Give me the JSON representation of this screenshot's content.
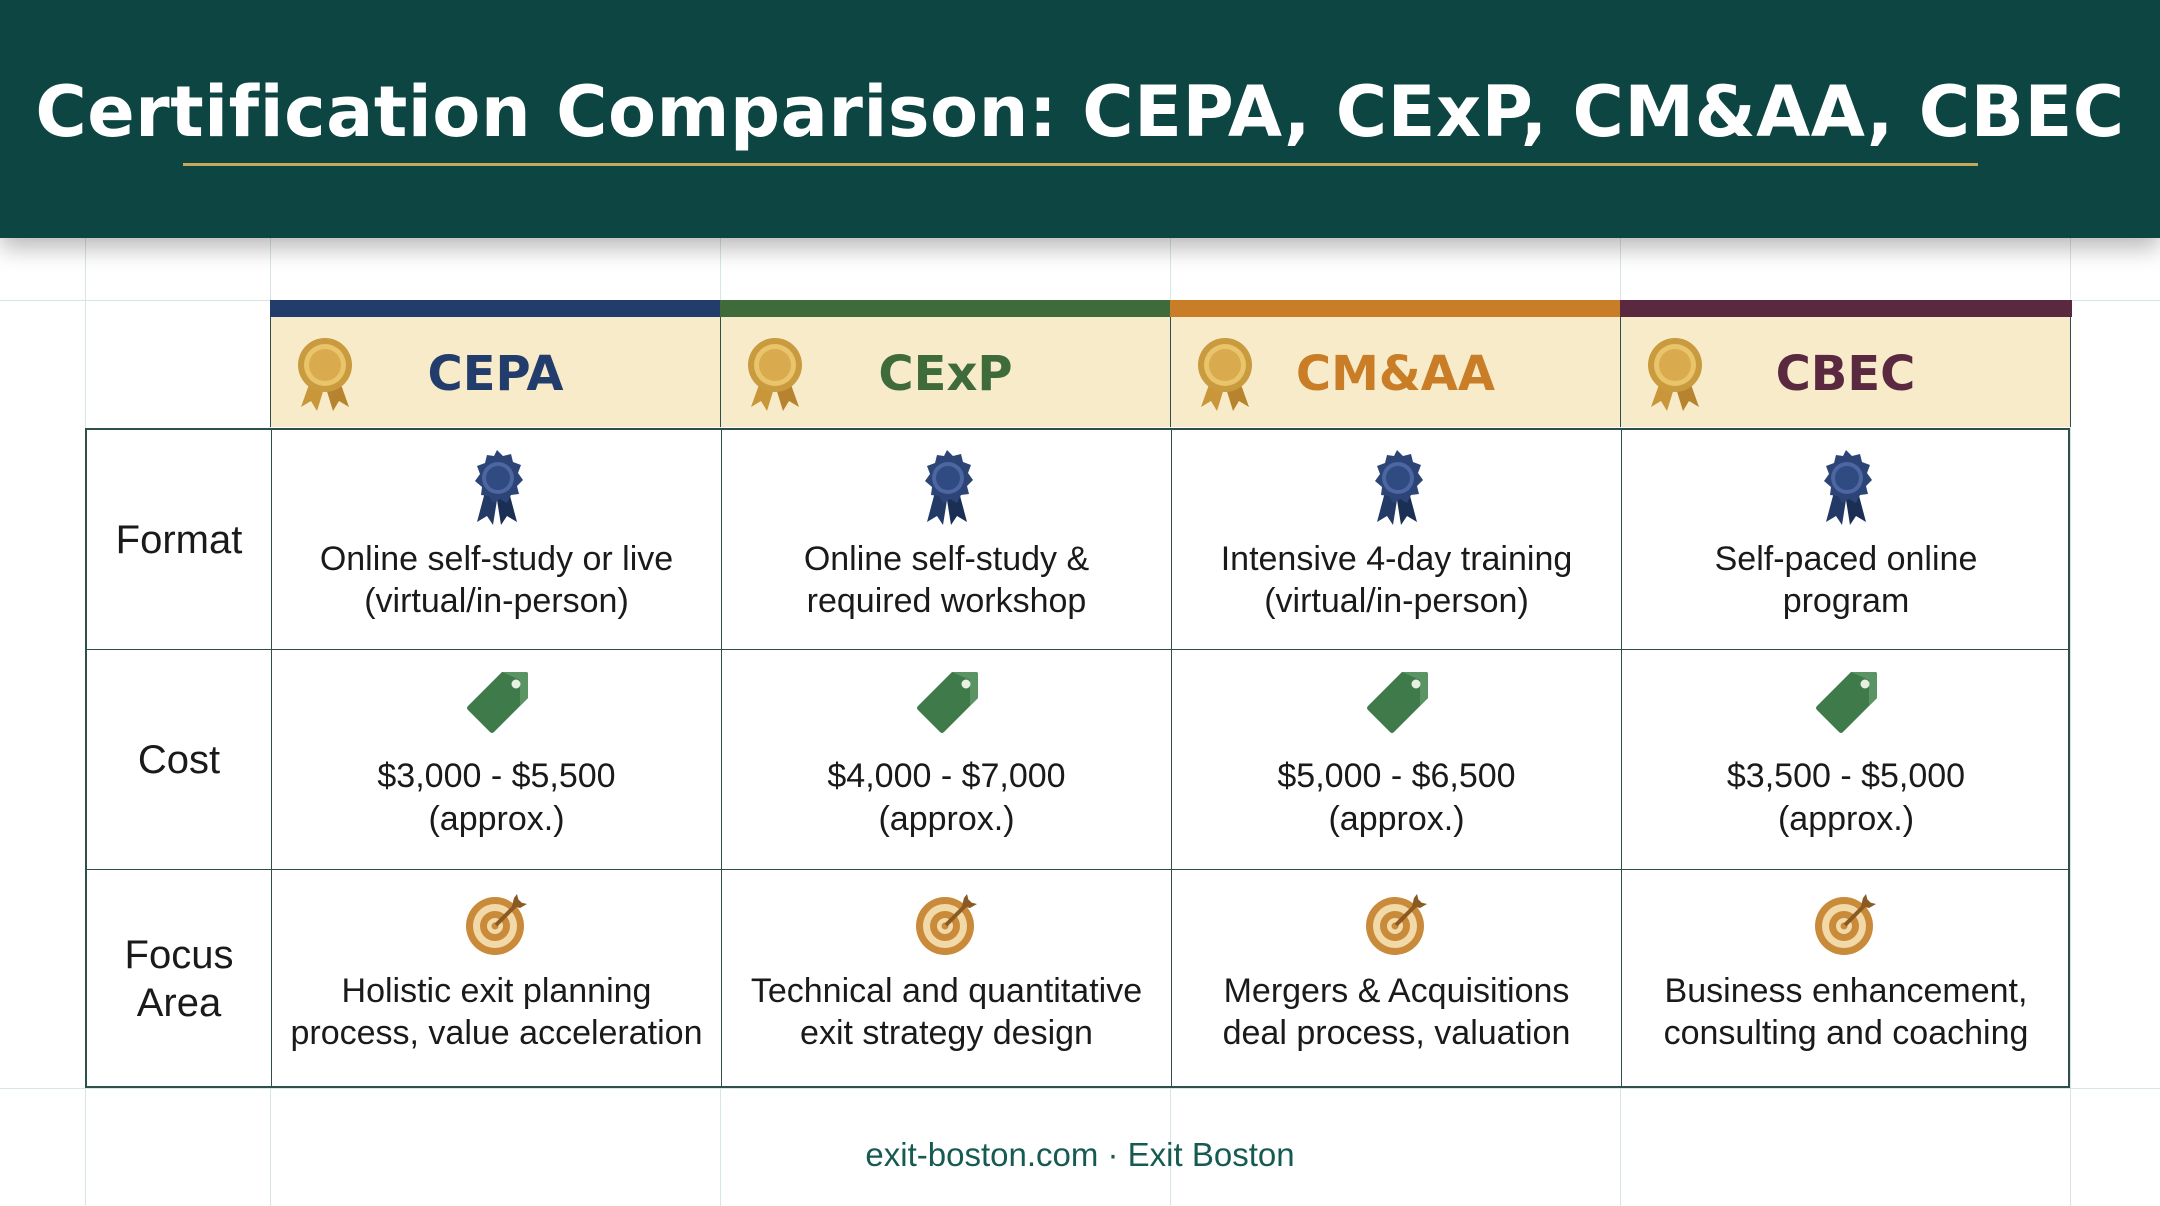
{
  "title": "Certification Comparison: CEPA, CExP, CM&AA, CBEC",
  "columns": [
    {
      "name": "CEPA",
      "accent": "#223d6b",
      "bar": "#223d6b"
    },
    {
      "name": "CExP",
      "accent": "#3f6b3a",
      "bar": "#3f6b3a"
    },
    {
      "name": "CM&AA",
      "accent": "#c97d26",
      "bar": "#c97d26"
    },
    {
      "name": "CBEC",
      "accent": "#5a2940",
      "bar": "#5a2940"
    }
  ],
  "rows": [
    {
      "label_line1": "Format",
      "label_line2": "",
      "icon": "ribbon-award-icon",
      "cells": [
        {
          "line1": "Online self-study or live",
          "line2": "(virtual/in-person)"
        },
        {
          "line1": "Online self-study &",
          "line2": "required workshop"
        },
        {
          "line1": "Intensive 4-day training",
          "line2": "(virtual/in-person)"
        },
        {
          "line1": "Self-paced online",
          "line2": "program"
        }
      ]
    },
    {
      "label_line1": "Cost",
      "label_line2": "",
      "icon": "price-tag-icon",
      "cells": [
        {
          "line1": "$3,000 - $5,500",
          "line2": "(approx.)"
        },
        {
          "line1": "$4,000 - $7,000",
          "line2": "(approx.)"
        },
        {
          "line1": "$5,000 - $6,500",
          "line2": "(approx.)"
        },
        {
          "line1": "$3,500 - $5,000",
          "line2": "(approx.)"
        }
      ]
    },
    {
      "label_line1": "Focus",
      "label_line2": "Area",
      "icon": "target-icon",
      "cells": [
        {
          "line1": "Holistic exit planning",
          "line2": "process, value acceleration"
        },
        {
          "line1": "Technical and quantitative",
          "line2": "exit strategy design"
        },
        {
          "line1": "Mergers & Acquisitions",
          "line2": "deal process, valuation"
        },
        {
          "line1": "Business enhancement,",
          "line2": "consulting and coaching"
        }
      ]
    }
  ],
  "footer": "exit-boston.com · Exit Boston",
  "colors": {
    "header_bg": "#0c4541",
    "title_rule": "#c6a85a",
    "column_head_bg": "#f7ebc9",
    "grid": "#2e4f4a",
    "footer_text": "#155b52"
  }
}
